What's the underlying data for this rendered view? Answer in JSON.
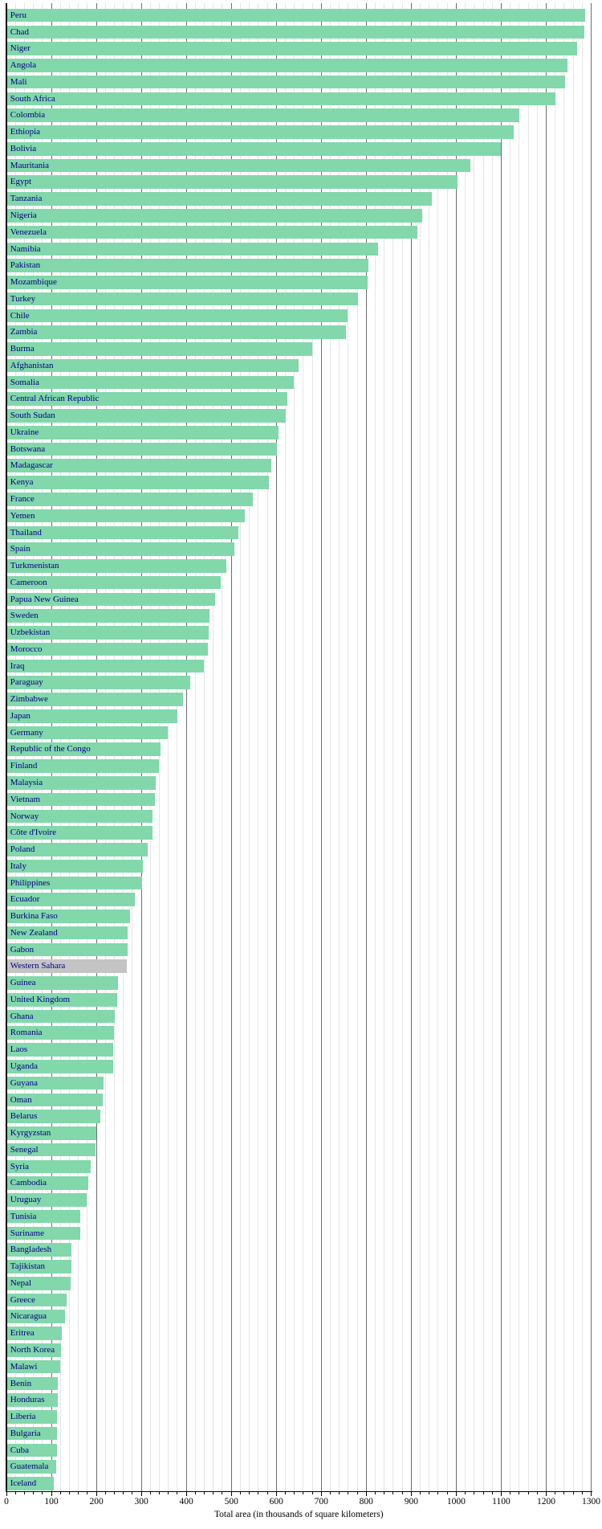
{
  "chart_data": {
    "type": "bar",
    "orientation": "horizontal",
    "title": "",
    "xlabel": "Total area (in thousands of square kilometers)",
    "ylabel": "",
    "xlim": [
      0,
      1300
    ],
    "x_major_tick_step": 100,
    "x_minor_tick_step": 20,
    "grid": true,
    "legend": "none",
    "x_tick_labels": [
      "0",
      "100",
      "200",
      "300",
      "400",
      "500",
      "600",
      "700",
      "800",
      "900",
      "1000",
      "1100",
      "1200",
      "1300"
    ],
    "categories": [
      "Peru",
      "Chad",
      "Niger",
      "Angola",
      "Mali",
      "South Africa",
      "Colombia",
      "Ethiopia",
      "Bolivia",
      "Mauritania",
      "Egypt",
      "Tanzania",
      "Nigeria",
      "Venezuela",
      "Namibia",
      "Pakistan",
      "Mozambique",
      "Turkey",
      "Chile",
      "Zambia",
      "Burma",
      "Afghanistan",
      "Somalia",
      "Central African Republic",
      "South Sudan",
      "Ukraine",
      "Botswana",
      "Madagascar",
      "Kenya",
      "France",
      "Yemen",
      "Thailand",
      "Spain",
      "Turkmenistan",
      "Cameroon",
      "Papua New Guinea",
      "Sweden",
      "Uzbekistan",
      "Morocco",
      "Iraq",
      "Paraguay",
      "Zimbabwe",
      "Japan",
      "Germany",
      "Republic of the Congo",
      "Finland",
      "Malaysia",
      "Vietnam",
      "Norway",
      "Côte d'Ivoire",
      "Poland",
      "Italy",
      "Philippines",
      "Ecuador",
      "Burkina Faso",
      "New Zealand",
      "Gabon",
      "Western Sahara",
      "Guinea",
      "United Kingdom",
      "Ghana",
      "Romania",
      "Laos",
      "Uganda",
      "Guyana",
      "Oman",
      "Belarus",
      "Kyrgyzstan",
      "Senegal",
      "Syria",
      "Cambodia",
      "Uruguay",
      "Tunisia",
      "Suriname",
      "Bangladesh",
      "Tajikistan",
      "Nepal",
      "Greece",
      "Nicaragua",
      "Eritrea",
      "North Korea",
      "Malawi",
      "Benin",
      "Honduras",
      "Liberia",
      "Bulgaria",
      "Cuba",
      "Guatemala",
      "Iceland"
    ],
    "values": [
      1285.2,
      1284.0,
      1267.0,
      1246.7,
      1240.2,
      1219.9,
      1138.9,
      1127.1,
      1098.6,
      1030.7,
      1001.5,
      945.1,
      923.8,
      912.1,
      825.4,
      803.9,
      801.6,
      780.6,
      757.0,
      752.6,
      678.5,
      647.5,
      637.7,
      623.0,
      619.7,
      603.7,
      600.4,
      587.0,
      582.7,
      547.0,
      528.0,
      514.0,
      504.8,
      488.1,
      475.4,
      462.8,
      450.0,
      447.4,
      446.6,
      437.1,
      406.8,
      390.6,
      377.8,
      357.0,
      342.0,
      338.1,
      329.8,
      329.6,
      323.8,
      322.5,
      312.7,
      301.2,
      300.0,
      283.6,
      274.2,
      268.7,
      267.7,
      266.0,
      245.9,
      244.8,
      239.5,
      237.5,
      236.8,
      236.0,
      215.0,
      212.5,
      207.6,
      198.5,
      196.2,
      185.2,
      181.0,
      176.2,
      163.6,
      163.3,
      144.0,
      143.1,
      140.8,
      131.9,
      129.5,
      121.3,
      120.5,
      118.5,
      112.6,
      112.1,
      111.4,
      110.9,
      110.9,
      108.9,
      103.0
    ],
    "colors": {
      "bar_default": "#82d7ab",
      "bar_western_sahara": "#c4c4c4",
      "bar_label": "#000080",
      "major_grid": "#6e6e6e",
      "minor_grid": "#e6e6e6",
      "axis": "#000000",
      "tick_label": "#000000"
    }
  }
}
